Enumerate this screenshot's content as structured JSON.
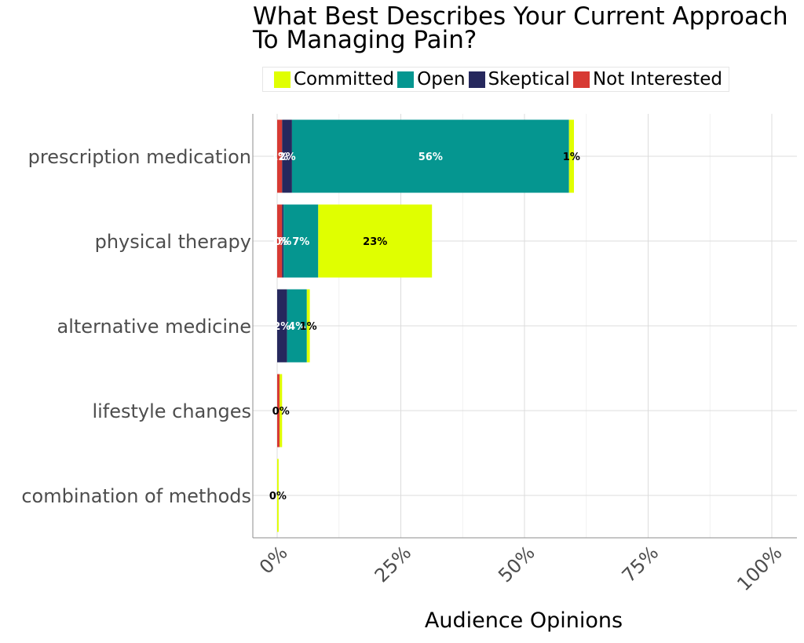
{
  "chart_data": {
    "type": "bar",
    "orientation": "horizontal",
    "stacked": true,
    "title": "What Best Describes Your Current Approach To Managing Pain?",
    "xlabel": "Audience Opinions",
    "ylabel": "",
    "xlim": [
      0,
      100
    ],
    "x_ticks": [
      "0%",
      "25%",
      "50%",
      "75%",
      "100%"
    ],
    "categories": [
      "prescription medication",
      "physical therapy",
      "alternative medicine",
      "lifestyle changes",
      "combination of methods"
    ],
    "series": [
      {
        "name": "Not Interested",
        "color": "#d73a33",
        "values": [
          1,
          1,
          0,
          0.5,
          0
        ],
        "labels": [
          "1%",
          "1%",
          "",
          "",
          ""
        ]
      },
      {
        "name": "Skeptical",
        "color": "#26285d",
        "values": [
          2,
          0.3,
          2,
          0,
          0
        ],
        "labels": [
          "2%",
          "0%",
          "2%",
          "",
          ""
        ]
      },
      {
        "name": "Open",
        "color": "#059690",
        "values": [
          56,
          7,
          4,
          0,
          0
        ],
        "labels": [
          "56%",
          "7%",
          "4%",
          "",
          ""
        ]
      },
      {
        "name": "Committed",
        "color": "#e0ff00",
        "values": [
          1,
          23,
          0.6,
          0.5,
          0.3
        ],
        "labels": [
          "1%",
          "23%",
          "1%",
          "0%",
          "0%"
        ]
      }
    ],
    "legend_position": "top",
    "grid": true
  }
}
